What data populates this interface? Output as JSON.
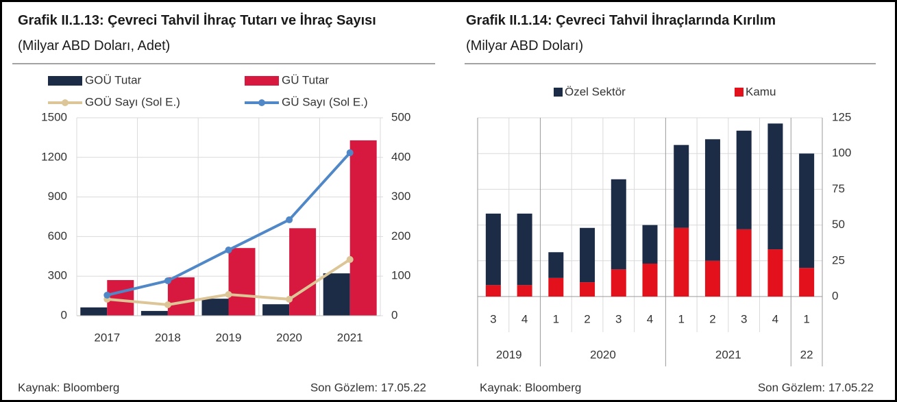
{
  "chart_data": [
    {
      "type": "bar",
      "title": "Grafik II.1.13: Çevreci Tahvil İhraç Tutarı ve İhraç Sayısı",
      "subtitle": "(Milyar ABD Doları, Adet)",
      "categories": [
        "2017",
        "2018",
        "2019",
        "2020",
        "2021"
      ],
      "series": [
        {
          "name": "GOÜ Tutar",
          "type": "bar",
          "axis": "y2",
          "color": "#1c2b46",
          "values": [
            21,
            12,
            43,
            29,
            107
          ]
        },
        {
          "name": "GÜ Tutar",
          "type": "bar",
          "axis": "y2",
          "color": "#d7193f",
          "values": [
            90,
            97,
            171,
            221,
            443
          ]
        },
        {
          "name": "GOÜ Sayı (Sol E.)",
          "type": "line",
          "axis": "y",
          "color": "#dcc596",
          "values": [
            125,
            83,
            161,
            125,
            426
          ]
        },
        {
          "name": "GÜ Sayı (Sol E.)",
          "type": "line",
          "axis": "y",
          "color": "#5087c7",
          "values": [
            156,
            265,
            498,
            727,
            1235
          ]
        }
      ],
      "ylim": [
        0,
        1500
      ],
      "yticks": [
        0,
        300,
        600,
        900,
        1200,
        1500
      ],
      "y2lim": [
        0,
        500
      ],
      "y2ticks": [
        0,
        100,
        200,
        300,
        400,
        500
      ],
      "grid": true,
      "source": "Kaynak: Bloomberg",
      "last_observation": "Son Gözlem: 17.05.22"
    },
    {
      "type": "stacked_bar",
      "title": "Grafik II.1.14: Çevreci Tahvil İhraçlarında Kırılım",
      "subtitle": "(Milyar ABD Doları)",
      "categories": [
        "3",
        "4",
        "1",
        "2",
        "3",
        "4",
        "1",
        "2",
        "3",
        "4",
        "1"
      ],
      "year_groups": [
        {
          "label": "2019",
          "span": 2
        },
        {
          "label": "2020",
          "span": 4
        },
        {
          "label": "2021",
          "span": 4
        },
        {
          "label": "22",
          "span": 1
        }
      ],
      "series": [
        {
          "name": "Özel Sektör",
          "color": "#1c2b46",
          "values": [
            50,
            50,
            18,
            38,
            63,
            27,
            58,
            85,
            69,
            88,
            80
          ]
        },
        {
          "name": "Kamu",
          "color": "#e3111b",
          "values": [
            8,
            8,
            13,
            10,
            19,
            23,
            48,
            25,
            47,
            33,
            20
          ]
        }
      ],
      "ylim": [
        0,
        125
      ],
      "yticks": [
        0,
        25,
        50,
        75,
        100,
        125
      ],
      "yaxis_side": "right",
      "grid": true,
      "source": "Kaynak: Bloomberg",
      "last_observation": "Son Gözlem: 17.05.22"
    }
  ]
}
